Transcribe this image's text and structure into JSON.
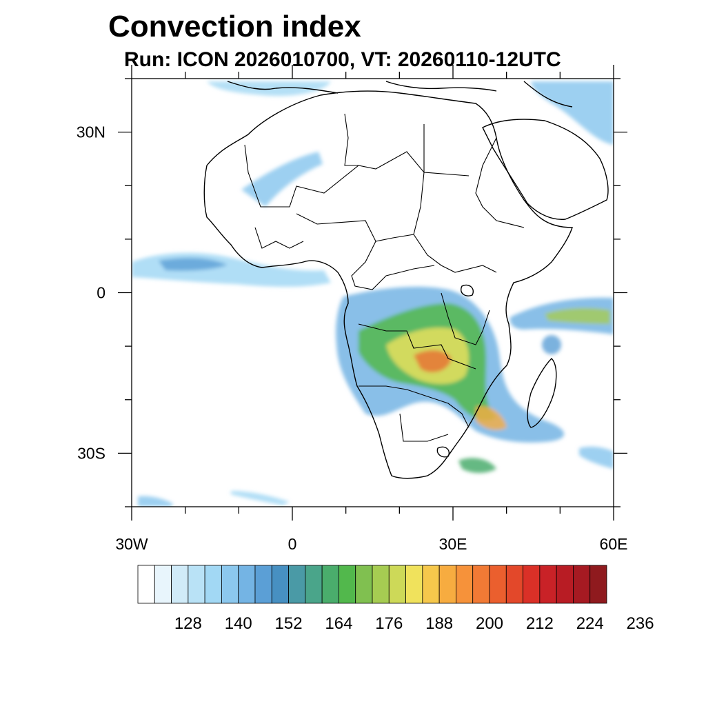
{
  "title": "Convection index",
  "subtitle": "Run: ICON 2026010700,  VT: 20260110-12UTC",
  "map": {
    "lon_range": [
      -30,
      60
    ],
    "lat_range": [
      -40,
      40
    ],
    "lon_ticks": [
      {
        "value": -30,
        "label": "30W"
      },
      {
        "value": 0,
        "label": "0"
      },
      {
        "value": 30,
        "label": "30E"
      },
      {
        "value": 60,
        "label": "60E"
      }
    ],
    "lat_ticks": [
      {
        "value": 30,
        "label": "30N"
      },
      {
        "value": 0,
        "label": "0"
      },
      {
        "value": -30,
        "label": "30S"
      }
    ]
  },
  "colorbar": {
    "colors": [
      "#ffffff",
      "#e8f5fc",
      "#d0ebf8",
      "#b9e2f6",
      "#a2d8f4",
      "#8cc8ee",
      "#74b4e4",
      "#5b9fd6",
      "#4790c2",
      "#4a9aa6",
      "#4aa58a",
      "#4aad6c",
      "#52b84c",
      "#80c050",
      "#a6cc52",
      "#cdd958",
      "#f0e25c",
      "#f6c84c",
      "#f7ac40",
      "#f6923a",
      "#f17a35",
      "#eb5f2e",
      "#e3482a",
      "#da3027",
      "#c92227",
      "#b81c24",
      "#a61a22",
      "#8f1a1e"
    ],
    "labels": [
      "128",
      "140",
      "152",
      "164",
      "176",
      "188",
      "200",
      "212",
      "224",
      "236"
    ]
  },
  "icons": {
    "land": "continent-outline",
    "field": "convection-shading"
  }
}
